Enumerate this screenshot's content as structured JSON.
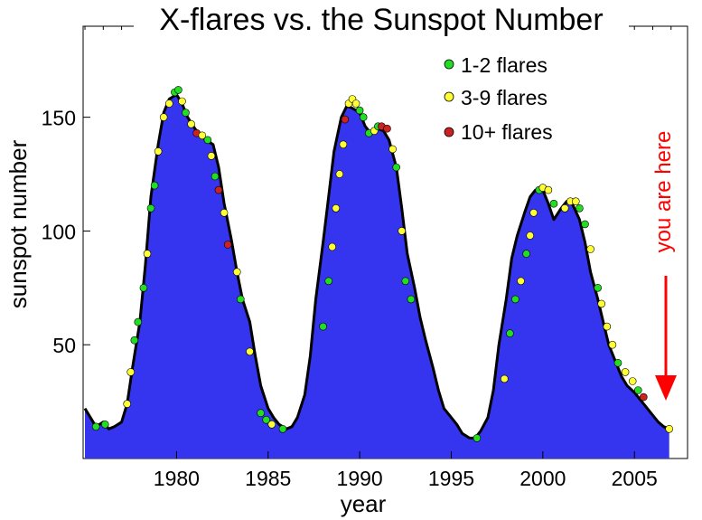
{
  "chart_data": {
    "type": "area",
    "title": "X-flares vs. the Sunspot Number",
    "xlabel": "year",
    "ylabel": "sunspot number",
    "xlim": [
      1974.9,
      2007.9
    ],
    "ylim": [
      0,
      190
    ],
    "x_ticks": [
      1980,
      1985,
      1990,
      1995,
      2000,
      2005
    ],
    "x_tick_labels": [
      "1980",
      "1985",
      "1990",
      "1995",
      "2000",
      "2005"
    ],
    "y_ticks": [
      50,
      100,
      150
    ],
    "y_tick_labels": [
      "50",
      "100",
      "150"
    ],
    "grid": false,
    "legend_position": "top-right",
    "area_color": "#3535f0",
    "legend": [
      {
        "label": "1-2 flares",
        "color": "#22dd22"
      },
      {
        "label": "3-9 flares",
        "color": "#ffff33"
      },
      {
        "label": "10+ flares",
        "color": "#cc2222"
      }
    ],
    "annotation": {
      "text": "you are here",
      "color": "#ff0000",
      "x": 2006.5
    },
    "sunspot_series": {
      "x": [
        1975.0,
        1975.3,
        1975.6,
        1976.0,
        1976.3,
        1976.6,
        1977.0,
        1977.3,
        1977.6,
        1978.0,
        1978.3,
        1978.6,
        1979.0,
        1979.3,
        1979.6,
        1980.0,
        1980.3,
        1980.6,
        1981.0,
        1981.3,
        1981.6,
        1982.0,
        1982.3,
        1982.6,
        1983.0,
        1983.3,
        1983.6,
        1984.0,
        1984.3,
        1984.6,
        1985.0,
        1985.3,
        1985.6,
        1986.0,
        1986.3,
        1986.6,
        1987.0,
        1987.3,
        1987.6,
        1988.0,
        1988.3,
        1988.6,
        1989.0,
        1989.3,
        1989.6,
        1990.0,
        1990.3,
        1990.6,
        1991.0,
        1991.3,
        1991.6,
        1992.0,
        1992.3,
        1992.6,
        1993.0,
        1993.3,
        1993.6,
        1994.0,
        1994.3,
        1994.6,
        1995.0,
        1995.3,
        1995.6,
        1996.0,
        1996.3,
        1996.6,
        1997.0,
        1997.3,
        1997.6,
        1998.0,
        1998.3,
        1998.6,
        1999.0,
        1999.3,
        1999.6,
        2000.0,
        2000.3,
        2000.6,
        2001.0,
        2001.3,
        2001.6,
        2002.0,
        2002.3,
        2002.6,
        2003.0,
        2003.3,
        2003.6,
        2004.0,
        2004.3,
        2004.6,
        2005.0,
        2005.3,
        2005.6,
        2006.0,
        2006.3,
        2006.6,
        2006.9
      ],
      "y": [
        22,
        18,
        14,
        16,
        13,
        14,
        16,
        24,
        40,
        60,
        85,
        115,
        138,
        152,
        158,
        160,
        156,
        150,
        145,
        142,
        140,
        138,
        128,
        112,
        96,
        82,
        70,
        60,
        45,
        32,
        22,
        18,
        15,
        13,
        14,
        18,
        28,
        45,
        70,
        95,
        115,
        135,
        150,
        155,
        154,
        152,
        146,
        143,
        145,
        144,
        140,
        128,
        110,
        90,
        75,
        62,
        52,
        40,
        30,
        22,
        18,
        15,
        11,
        9,
        9,
        12,
        18,
        30,
        50,
        70,
        88,
        98,
        108,
        115,
        118,
        118,
        112,
        105,
        110,
        113,
        112,
        105,
        95,
        82,
        70,
        60,
        50,
        42,
        36,
        32,
        29,
        26,
        23,
        19,
        16,
        14,
        13
      ]
    },
    "flare_points": [
      {
        "x": 1975.6,
        "y": 14,
        "count": "1-2"
      },
      {
        "x": 1976.1,
        "y": 15,
        "count": "1-2"
      },
      {
        "x": 1977.3,
        "y": 24,
        "count": "3-9"
      },
      {
        "x": 1977.5,
        "y": 38,
        "count": "3-9"
      },
      {
        "x": 1977.7,
        "y": 52,
        "count": "1-2"
      },
      {
        "x": 1977.9,
        "y": 60,
        "count": "1-2"
      },
      {
        "x": 1978.2,
        "y": 75,
        "count": "1-2"
      },
      {
        "x": 1978.4,
        "y": 90,
        "count": "3-9"
      },
      {
        "x": 1978.6,
        "y": 110,
        "count": "1-2"
      },
      {
        "x": 1978.8,
        "y": 120,
        "count": "1-2"
      },
      {
        "x": 1979.0,
        "y": 135,
        "count": "3-9"
      },
      {
        "x": 1979.3,
        "y": 150,
        "count": "3-9"
      },
      {
        "x": 1979.6,
        "y": 156,
        "count": "3-9"
      },
      {
        "x": 1979.9,
        "y": 161,
        "count": "1-2"
      },
      {
        "x": 1980.1,
        "y": 162,
        "count": "1-2"
      },
      {
        "x": 1980.3,
        "y": 157,
        "count": "3-9"
      },
      {
        "x": 1980.5,
        "y": 152,
        "count": "1-2"
      },
      {
        "x": 1980.8,
        "y": 147,
        "count": "3-9"
      },
      {
        "x": 1981.1,
        "y": 143,
        "count": "10+"
      },
      {
        "x": 1981.4,
        "y": 142,
        "count": "3-9"
      },
      {
        "x": 1981.7,
        "y": 140,
        "count": "1-2"
      },
      {
        "x": 1981.9,
        "y": 133,
        "count": "3-9"
      },
      {
        "x": 1982.1,
        "y": 124,
        "count": "1-2"
      },
      {
        "x": 1982.3,
        "y": 118,
        "count": "10+"
      },
      {
        "x": 1982.6,
        "y": 108,
        "count": "3-9"
      },
      {
        "x": 1982.8,
        "y": 94,
        "count": "10+"
      },
      {
        "x": 1983.3,
        "y": 82,
        "count": "3-9"
      },
      {
        "x": 1983.5,
        "y": 70,
        "count": "1-2"
      },
      {
        "x": 1984.0,
        "y": 47,
        "count": "3-9"
      },
      {
        "x": 1984.6,
        "y": 20,
        "count": "1-2"
      },
      {
        "x": 1984.9,
        "y": 17,
        "count": "1-2"
      },
      {
        "x": 1985.2,
        "y": 15,
        "count": "3-9"
      },
      {
        "x": 1985.8,
        "y": 13,
        "count": "1-2"
      },
      {
        "x": 1988.0,
        "y": 58,
        "count": "1-2"
      },
      {
        "x": 1988.3,
        "y": 78,
        "count": "1-2"
      },
      {
        "x": 1988.5,
        "y": 93,
        "count": "3-9"
      },
      {
        "x": 1988.7,
        "y": 110,
        "count": "3-9"
      },
      {
        "x": 1988.9,
        "y": 125,
        "count": "3-9"
      },
      {
        "x": 1989.1,
        "y": 138,
        "count": "3-9"
      },
      {
        "x": 1989.2,
        "y": 149,
        "count": "10+"
      },
      {
        "x": 1989.4,
        "y": 156,
        "count": "3-9"
      },
      {
        "x": 1989.6,
        "y": 158,
        "count": "3-9"
      },
      {
        "x": 1989.8,
        "y": 156,
        "count": "3-9"
      },
      {
        "x": 1990.0,
        "y": 153,
        "count": "1-2"
      },
      {
        "x": 1990.2,
        "y": 150,
        "count": "1-2"
      },
      {
        "x": 1990.5,
        "y": 143,
        "count": "1-2"
      },
      {
        "x": 1990.8,
        "y": 144,
        "count": "3-9"
      },
      {
        "x": 1991.0,
        "y": 146,
        "count": "1-2"
      },
      {
        "x": 1991.2,
        "y": 146,
        "count": "10+"
      },
      {
        "x": 1991.5,
        "y": 145,
        "count": "10+"
      },
      {
        "x": 1991.8,
        "y": 136,
        "count": "3-9"
      },
      {
        "x": 1992.0,
        "y": 128,
        "count": "1-2"
      },
      {
        "x": 1992.3,
        "y": 100,
        "count": "3-9"
      },
      {
        "x": 1992.5,
        "y": 78,
        "count": "1-2"
      },
      {
        "x": 1992.8,
        "y": 70,
        "count": "1-2"
      },
      {
        "x": 1996.4,
        "y": 9,
        "count": "1-2"
      },
      {
        "x": 1997.9,
        "y": 35,
        "count": "3-9"
      },
      {
        "x": 1998.2,
        "y": 55,
        "count": "1-2"
      },
      {
        "x": 1998.5,
        "y": 70,
        "count": "1-2"
      },
      {
        "x": 1998.8,
        "y": 78,
        "count": "3-9"
      },
      {
        "x": 1999.1,
        "y": 90,
        "count": "1-2"
      },
      {
        "x": 1999.3,
        "y": 98,
        "count": "3-9"
      },
      {
        "x": 1999.5,
        "y": 108,
        "count": "3-9"
      },
      {
        "x": 1999.8,
        "y": 118,
        "count": "1-2"
      },
      {
        "x": 2000.0,
        "y": 119,
        "count": "3-9"
      },
      {
        "x": 2000.3,
        "y": 118,
        "count": "3-9"
      },
      {
        "x": 2000.6,
        "y": 112,
        "count": "1-2"
      },
      {
        "x": 2001.2,
        "y": 110,
        "count": "3-9"
      },
      {
        "x": 2001.5,
        "y": 113,
        "count": "3-9"
      },
      {
        "x": 2001.8,
        "y": 113,
        "count": "3-9"
      },
      {
        "x": 2002.0,
        "y": 110,
        "count": "1-2"
      },
      {
        "x": 2002.3,
        "y": 103,
        "count": "1-2"
      },
      {
        "x": 2002.6,
        "y": 92,
        "count": "3-9"
      },
      {
        "x": 2003.0,
        "y": 75,
        "count": "1-2"
      },
      {
        "x": 2003.2,
        "y": 68,
        "count": "3-9"
      },
      {
        "x": 2003.5,
        "y": 58,
        "count": "3-9"
      },
      {
        "x": 2003.8,
        "y": 50,
        "count": "3-9"
      },
      {
        "x": 2004.1,
        "y": 42,
        "count": "1-2"
      },
      {
        "x": 2004.5,
        "y": 38,
        "count": "3-9"
      },
      {
        "x": 2004.9,
        "y": 34,
        "count": "3-9"
      },
      {
        "x": 2005.2,
        "y": 30,
        "count": "1-2"
      },
      {
        "x": 2005.5,
        "y": 27,
        "count": "10+"
      },
      {
        "x": 2006.9,
        "y": 13,
        "count": "3-9"
      }
    ]
  }
}
